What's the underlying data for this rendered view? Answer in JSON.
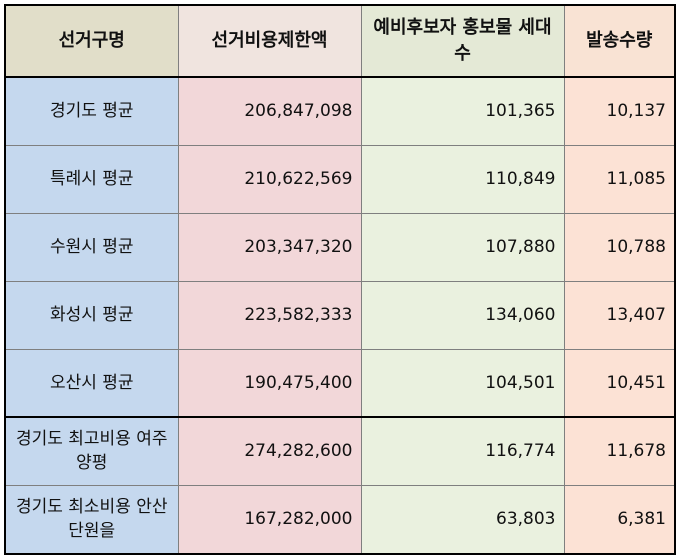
{
  "headers": [
    "선거구명",
    "선거비용제한액",
    "예비후보자 홍보물 세대수",
    "발송수량"
  ],
  "rows": [
    {
      "name": "경기도 평균",
      "limit": "206,847,098",
      "households": "101,365",
      "qty": "10,137"
    },
    {
      "name": "특례시 평균",
      "limit": "210,622,569",
      "households": "110,849",
      "qty": "11,085"
    },
    {
      "name": "수원시 평균",
      "limit": "203,347,320",
      "households": "107,880",
      "qty": "10,788"
    },
    {
      "name": "화성시 평균",
      "limit": "223,582,333",
      "households": "134,060",
      "qty": "13,407"
    },
    {
      "name": "오산시 평균",
      "limit": "190,475,400",
      "households": "104,501",
      "qty": "10,451"
    },
    {
      "name": "경기도 최고비용 여주양평",
      "limit": "274,282,600",
      "households": "116,774",
      "qty": "11,678"
    },
    {
      "name": "경기도 최소비용 안산단원을",
      "limit": "167,282,000",
      "households": "63,803",
      "qty": "6,381"
    }
  ]
}
